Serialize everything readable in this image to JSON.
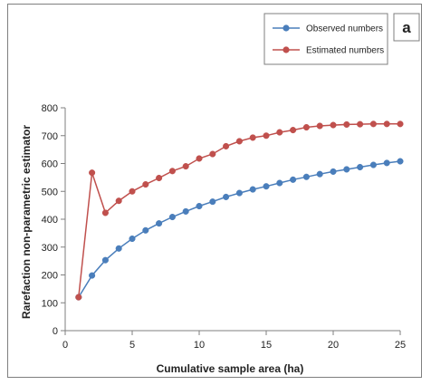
{
  "chart_data": {
    "type": "line",
    "panel_label": "a",
    "xlabel": "Cumulative sample area (ha)",
    "ylabel": "Rarefaction non-parametric estimator",
    "xlim": [
      0,
      25
    ],
    "ylim": [
      0,
      800
    ],
    "xticks": [
      0,
      5,
      10,
      15,
      20,
      25
    ],
    "yticks": [
      0,
      100,
      200,
      300,
      400,
      500,
      600,
      700,
      800
    ],
    "grid": false,
    "legend_position": "top-right",
    "x": [
      1,
      2,
      3,
      4,
      5,
      6,
      7,
      8,
      9,
      10,
      11,
      12,
      13,
      14,
      15,
      16,
      17,
      18,
      19,
      20,
      21,
      22,
      23,
      24,
      25
    ],
    "series": [
      {
        "name": "Observed numbers",
        "color": "#4A7EBB",
        "values": [
          120,
          198,
          253,
          295,
          330,
          360,
          385,
          408,
          428,
          447,
          463,
          480,
          494,
          507,
          518,
          530,
          542,
          552,
          562,
          571,
          579,
          587,
          595,
          602,
          608
        ]
      },
      {
        "name": "Estimated numbers",
        "color": "#C0504D",
        "values": [
          120,
          567,
          423,
          466,
          500,
          525,
          548,
          573,
          590,
          618,
          634,
          662,
          680,
          693,
          700,
          712,
          720,
          730,
          735,
          738,
          740,
          741,
          742,
          742,
          742
        ]
      }
    ]
  }
}
